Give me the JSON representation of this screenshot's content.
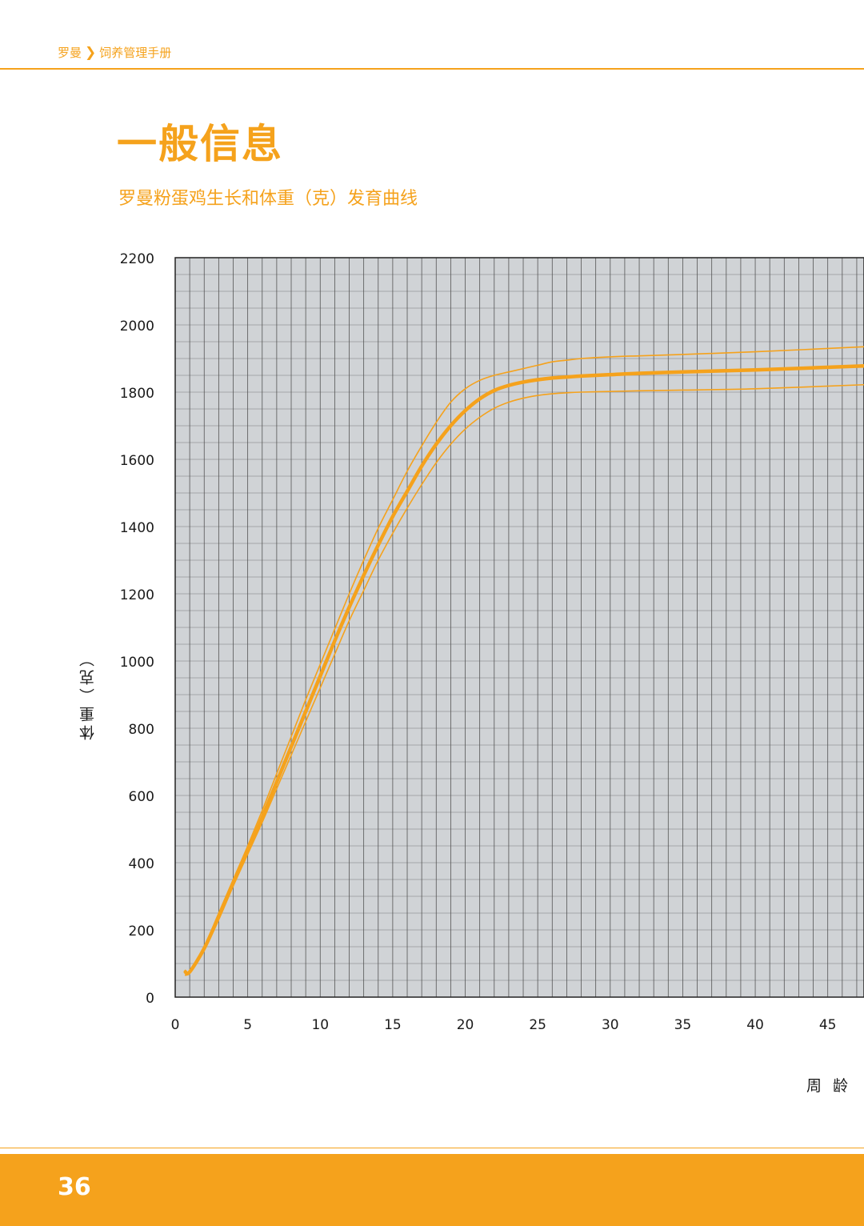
{
  "breadcrumb": {
    "brand": "罗曼",
    "separator": "❯",
    "section": "饲养管理手册"
  },
  "page_title": "一般信息",
  "page_number": "36",
  "colors": {
    "accent": "#f5a21c",
    "grid_bg": "#d0d3d6",
    "grid_line": "#555555"
  },
  "chart_data": {
    "type": "line",
    "title": "罗曼粉蛋鸡生长和体重（克）发育曲线",
    "xlabel": "周 龄",
    "ylabel": "体重（克）",
    "xlim": [
      0,
      47.5
    ],
    "ylim": [
      0,
      2200
    ],
    "xticks": [
      0,
      5,
      10,
      15,
      20,
      25,
      30,
      35,
      40,
      45
    ],
    "yticks": [
      0,
      200,
      400,
      600,
      800,
      1000,
      1200,
      1400,
      1600,
      1800,
      2000,
      2200
    ],
    "grid": true,
    "legend": "none",
    "series": [
      {
        "style": "thin",
        "x": [
          0.7,
          1,
          2,
          3,
          4,
          5,
          6,
          7,
          8,
          9,
          10,
          11,
          12,
          13,
          14,
          15,
          16,
          17,
          18,
          19,
          20,
          21,
          22,
          23,
          24,
          25,
          26,
          27,
          28,
          30,
          32,
          35,
          40,
          47.5
        ],
        "y": [
          65,
          75,
          150,
          250,
          350,
          450,
          555,
          665,
          775,
          885,
          990,
          1095,
          1200,
          1300,
          1395,
          1480,
          1565,
          1640,
          1710,
          1770,
          1810,
          1835,
          1850,
          1860,
          1870,
          1880,
          1890,
          1895,
          1900,
          1905,
          1908,
          1912,
          1920,
          1935
        ]
      },
      {
        "style": "thick",
        "x": [
          0.7,
          1,
          2,
          3,
          4,
          5,
          6,
          7,
          8,
          9,
          10,
          11,
          12,
          13,
          14,
          15,
          16,
          17,
          18,
          19,
          20,
          21,
          22,
          23,
          24,
          25,
          26,
          27,
          28,
          30,
          32,
          35,
          40,
          47.5
        ],
        "y": [
          75,
          75,
          145,
          240,
          340,
          435,
          535,
          640,
          745,
          850,
          955,
          1060,
          1160,
          1255,
          1345,
          1430,
          1505,
          1580,
          1645,
          1700,
          1745,
          1780,
          1805,
          1820,
          1830,
          1837,
          1842,
          1845,
          1848,
          1852,
          1856,
          1860,
          1866,
          1878
        ]
      },
      {
        "style": "thin",
        "x": [
          0.7,
          1,
          2,
          3,
          4,
          5,
          6,
          7,
          8,
          9,
          10,
          11,
          12,
          13,
          14,
          15,
          16,
          17,
          18,
          19,
          20,
          21,
          22,
          23,
          24,
          25,
          26,
          27,
          28,
          30,
          32,
          35,
          40,
          47.5
        ],
        "y": [
          80,
          78,
          140,
          230,
          330,
          425,
          520,
          620,
          720,
          820,
          920,
          1020,
          1120,
          1210,
          1300,
          1380,
          1455,
          1525,
          1590,
          1645,
          1690,
          1725,
          1752,
          1770,
          1782,
          1790,
          1795,
          1798,
          1800,
          1802,
          1804,
          1806,
          1810,
          1822
        ]
      }
    ]
  }
}
